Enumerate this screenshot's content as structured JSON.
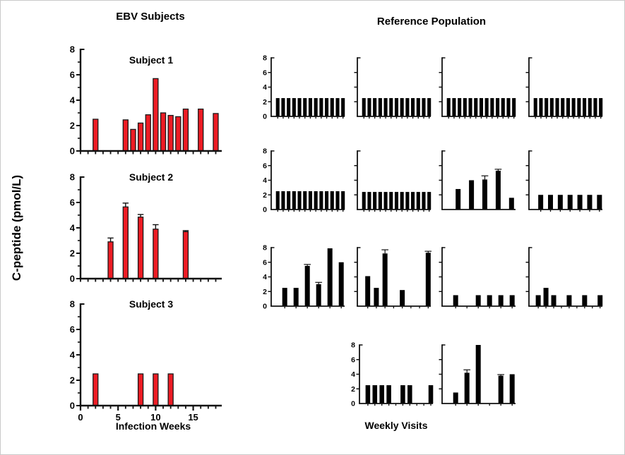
{
  "figure": {
    "left_title": "EBV Subjects",
    "right_title": "Reference Population",
    "y_axis_label": "C-peptide (pmol/L)",
    "left_x_axis_label": "Infection Weeks",
    "right_x_axis_label": "Weekly Visits",
    "ebv_bar_color": "#ED1C24",
    "reference_bar_color": "#000000",
    "axis_color": "#111111"
  },
  "chart_data": {
    "type": "bar",
    "ylabel": "C-peptide (pmol/L)",
    "ylim": [
      0,
      8
    ],
    "yticks": [
      0,
      2,
      4,
      6,
      8
    ],
    "y_minor_ticks": [
      1,
      3,
      5,
      7
    ],
    "grid": false,
    "legend": "none",
    "ebv": {
      "title": "EBV Subjects",
      "xlabel": "Infection Weeks",
      "xlim": [
        0,
        18.8
      ],
      "xtick_step": 1,
      "xtick_labels_shown": [
        0,
        5,
        10,
        15
      ],
      "bar_color": "#ED1C24",
      "bar_format": [
        "week",
        "c_peptide_pmol_L",
        "error"
      ],
      "panels": [
        {
          "title": "Subject 1",
          "show_xtick_labels": false,
          "bars": [
            [
              2,
              2.5
            ],
            [
              6,
              2.45
            ],
            [
              7,
              1.7
            ],
            [
              8,
              2.2
            ],
            [
              9,
              2.85
            ],
            [
              10,
              5.7
            ],
            [
              11,
              3.0
            ],
            [
              12,
              2.8
            ],
            [
              13,
              2.7
            ],
            [
              14,
              3.3
            ],
            [
              16,
              3.3
            ],
            [
              18,
              2.95
            ]
          ]
        },
        {
          "title": "Subject 2",
          "show_xtick_labels": false,
          "bars": [
            [
              4,
              2.9,
              0.3
            ],
            [
              6,
              5.65,
              0.3
            ],
            [
              8,
              4.85,
              0.2
            ],
            [
              10,
              3.9,
              0.35
            ],
            [
              14,
              3.7,
              0.08
            ]
          ]
        },
        {
          "title": "Subject 3",
          "show_xtick_labels": true,
          "bars": [
            [
              2,
              2.5
            ],
            [
              8,
              2.5
            ],
            [
              10,
              2.5
            ],
            [
              12,
              2.5
            ]
          ]
        }
      ]
    },
    "reference": {
      "title": "Reference Population",
      "xlabel": "Weekly Visits",
      "bar_color": "#000000",
      "bar_format": [
        "visit",
        "c_peptide_pmol_L",
        "error"
      ],
      "panels": [
        {
          "row": 1,
          "col": 1,
          "slots": 13,
          "show_ytick_labels": true,
          "xticks": true,
          "bars": [
            [
              1,
              2.5
            ],
            [
              2,
              2.5
            ],
            [
              3,
              2.5
            ],
            [
              4,
              2.5
            ],
            [
              5,
              2.5
            ],
            [
              6,
              2.5
            ],
            [
              7,
              2.5
            ],
            [
              8,
              2.5
            ],
            [
              9,
              2.5
            ],
            [
              10,
              2.5
            ],
            [
              11,
              2.5
            ],
            [
              12,
              2.5
            ],
            [
              13,
              2.5
            ]
          ]
        },
        {
          "row": 1,
          "col": 2,
          "slots": 13,
          "show_ytick_labels": false,
          "xticks": true,
          "bars": [
            [
              1,
              2.5
            ],
            [
              2,
              2.5
            ],
            [
              3,
              2.5
            ],
            [
              4,
              2.5
            ],
            [
              5,
              2.5
            ],
            [
              6,
              2.5
            ],
            [
              7,
              2.5
            ],
            [
              8,
              2.5
            ],
            [
              9,
              2.5
            ],
            [
              10,
              2.5
            ],
            [
              11,
              2.5
            ],
            [
              12,
              2.5
            ],
            [
              13,
              2.5
            ]
          ]
        },
        {
          "row": 1,
          "col": 3,
          "slots": 13,
          "show_ytick_labels": false,
          "xticks": true,
          "bars": [
            [
              1,
              2.5
            ],
            [
              2,
              2.5
            ],
            [
              3,
              2.5
            ],
            [
              4,
              2.5
            ],
            [
              5,
              2.5
            ],
            [
              6,
              2.5
            ],
            [
              7,
              2.5
            ],
            [
              8,
              2.5
            ],
            [
              9,
              2.5
            ],
            [
              10,
              2.5
            ],
            [
              11,
              2.5
            ],
            [
              12,
              2.5
            ],
            [
              13,
              2.5
            ]
          ]
        },
        {
          "row": 1,
          "col": 4,
          "slots": 13,
          "show_ytick_labels": false,
          "xticks": true,
          "bars": [
            [
              1,
              2.5
            ],
            [
              2,
              2.5
            ],
            [
              3,
              2.5
            ],
            [
              4,
              2.5
            ],
            [
              5,
              2.5
            ],
            [
              6,
              2.5
            ],
            [
              7,
              2.5
            ],
            [
              8,
              2.5
            ],
            [
              9,
              2.5
            ],
            [
              10,
              2.5
            ],
            [
              11,
              2.5
            ],
            [
              12,
              2.5
            ],
            [
              13,
              2.5
            ]
          ]
        },
        {
          "row": 2,
          "col": 1,
          "slots": 13,
          "show_ytick_labels": true,
          "xticks": true,
          "bars": [
            [
              1,
              2.5
            ],
            [
              2,
              2.5
            ],
            [
              3,
              2.5
            ],
            [
              4,
              2.5
            ],
            [
              5,
              2.5
            ],
            [
              6,
              2.5
            ],
            [
              7,
              2.5
            ],
            [
              8,
              2.5
            ],
            [
              9,
              2.5
            ],
            [
              10,
              2.5
            ],
            [
              11,
              2.5
            ],
            [
              12,
              2.5
            ],
            [
              13,
              2.5
            ]
          ]
        },
        {
          "row": 2,
          "col": 2,
          "slots": 13,
          "show_ytick_labels": false,
          "xticks": true,
          "bars": [
            [
              1,
              2.4
            ],
            [
              2,
              2.4
            ],
            [
              3,
              2.4
            ],
            [
              4,
              2.4
            ],
            [
              5,
              2.4
            ],
            [
              6,
              2.4
            ],
            [
              7,
              2.4
            ],
            [
              8,
              2.4
            ],
            [
              9,
              2.4
            ],
            [
              10,
              2.4
            ],
            [
              11,
              2.4
            ],
            [
              12,
              2.4
            ],
            [
              13,
              2.4
            ]
          ]
        },
        {
          "row": 2,
          "col": 3,
          "slots": 5,
          "show_ytick_labels": false,
          "xticks": false,
          "bars": [
            [
              1,
              2.8
            ],
            [
              2,
              4.0
            ],
            [
              3,
              4.1,
              0.5
            ],
            [
              4,
              5.3,
              0.2
            ],
            [
              5,
              1.6
            ]
          ]
        },
        {
          "row": 2,
          "col": 4,
          "slots": 7,
          "show_ytick_labels": false,
          "xticks": true,
          "bars": [
            [
              1,
              2.0
            ],
            [
              2,
              2.0
            ],
            [
              3,
              2.0
            ],
            [
              4,
              2.0
            ],
            [
              5,
              2.0
            ],
            [
              6,
              2.0
            ],
            [
              7,
              2.0
            ]
          ]
        },
        {
          "row": 3,
          "col": 1,
          "slots": 6,
          "show_ytick_labels": true,
          "xticks": true,
          "bars": [
            [
              1,
              2.5
            ],
            [
              2,
              2.5
            ],
            [
              3,
              5.5,
              0.2
            ],
            [
              4,
              3.0,
              0.25
            ],
            [
              5,
              7.9
            ],
            [
              6,
              6.0
            ]
          ]
        },
        {
          "row": 3,
          "col": 2,
          "slots": 8,
          "show_ytick_labels": false,
          "xticks": true,
          "bars": [
            [
              1,
              4.1
            ],
            [
              2,
              2.5
            ],
            [
              3,
              7.2,
              0.5
            ],
            [
              5,
              2.2
            ],
            [
              8,
              7.3,
              0.2
            ]
          ]
        },
        {
          "row": 3,
          "col": 3,
          "slots": 6,
          "show_ytick_labels": false,
          "xticks": true,
          "bars": [
            [
              1,
              1.5
            ],
            [
              3,
              1.5
            ],
            [
              4,
              1.5
            ],
            [
              5,
              1.5
            ],
            [
              6,
              1.5
            ]
          ]
        },
        {
          "row": 3,
          "col": 4,
          "slots": 9,
          "show_ytick_labels": false,
          "xticks": true,
          "bars": [
            [
              1,
              1.5
            ],
            [
              2,
              2.5
            ],
            [
              3,
              1.5
            ],
            [
              5,
              1.5
            ],
            [
              7,
              1.5
            ],
            [
              9,
              1.5
            ]
          ]
        },
        {
          "row": 4,
          "col": 2,
          "slots": 10,
          "show_ytick_labels": true,
          "xticks": true,
          "bars": [
            [
              1,
              2.5
            ],
            [
              2,
              2.5
            ],
            [
              3,
              2.5
            ],
            [
              4,
              2.5
            ],
            [
              6,
              2.5
            ],
            [
              7,
              2.5
            ],
            [
              10,
              2.5
            ]
          ]
        },
        {
          "row": 4,
          "col": 3,
          "slots": 6,
          "show_ytick_labels": false,
          "xticks": true,
          "bars": [
            [
              1,
              1.5
            ],
            [
              2,
              4.2,
              0.4
            ],
            [
              3,
              8.0
            ],
            [
              5,
              3.8,
              0.15
            ],
            [
              6,
              4.0
            ]
          ]
        }
      ]
    }
  }
}
